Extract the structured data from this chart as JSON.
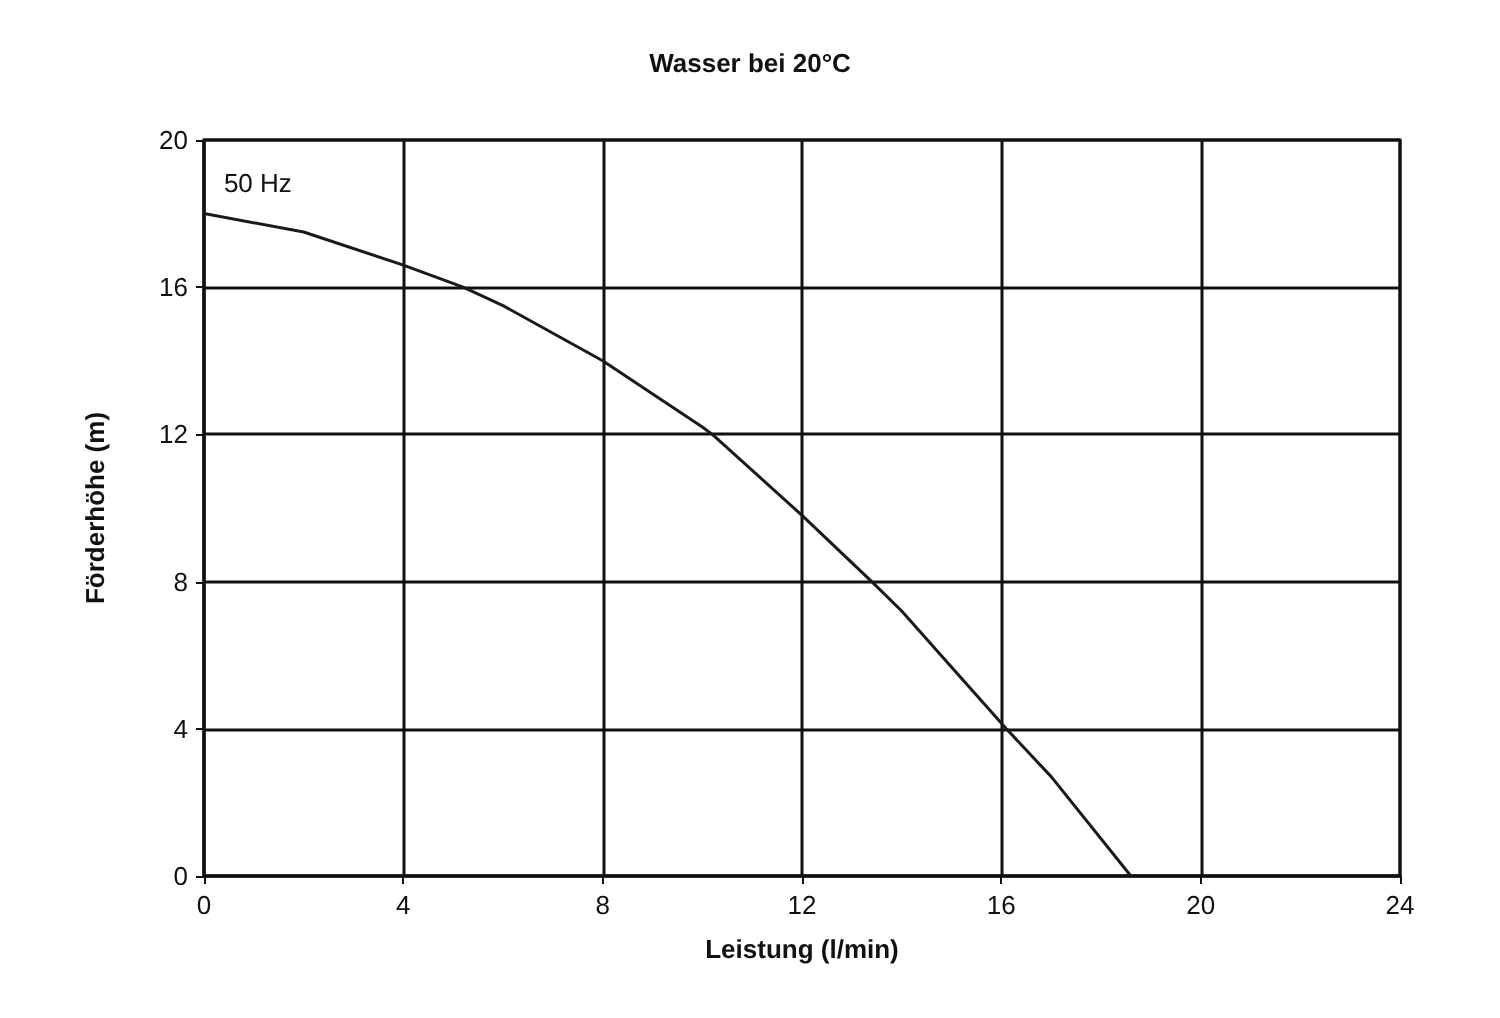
{
  "chart_data": {
    "type": "line",
    "title": "Wasser bei 20°C",
    "xlabel": "Leistung (l/min)",
    "ylabel": "Förderhöhe (m)",
    "x": [
      0,
      2,
      4,
      5.2,
      6,
      8,
      10,
      10.2,
      12,
      13.4,
      14,
      16.1,
      17,
      18.6
    ],
    "series": [
      {
        "name": "50 Hz",
        "color": "#1a1a1a",
        "values": [
          18,
          17.5,
          16.6,
          16,
          15.5,
          14,
          12.2,
          12,
          9.8,
          8,
          7.2,
          4,
          2.7,
          0
        ]
      }
    ],
    "xlim": [
      0,
      24
    ],
    "xticks": [
      0,
      4,
      8,
      12,
      16,
      20,
      24
    ],
    "ylim": [
      0,
      20
    ],
    "yticks": [
      0,
      4,
      8,
      12,
      16,
      20
    ],
    "grid": true,
    "legend": false,
    "marker": "none",
    "line_style": "solid"
  }
}
